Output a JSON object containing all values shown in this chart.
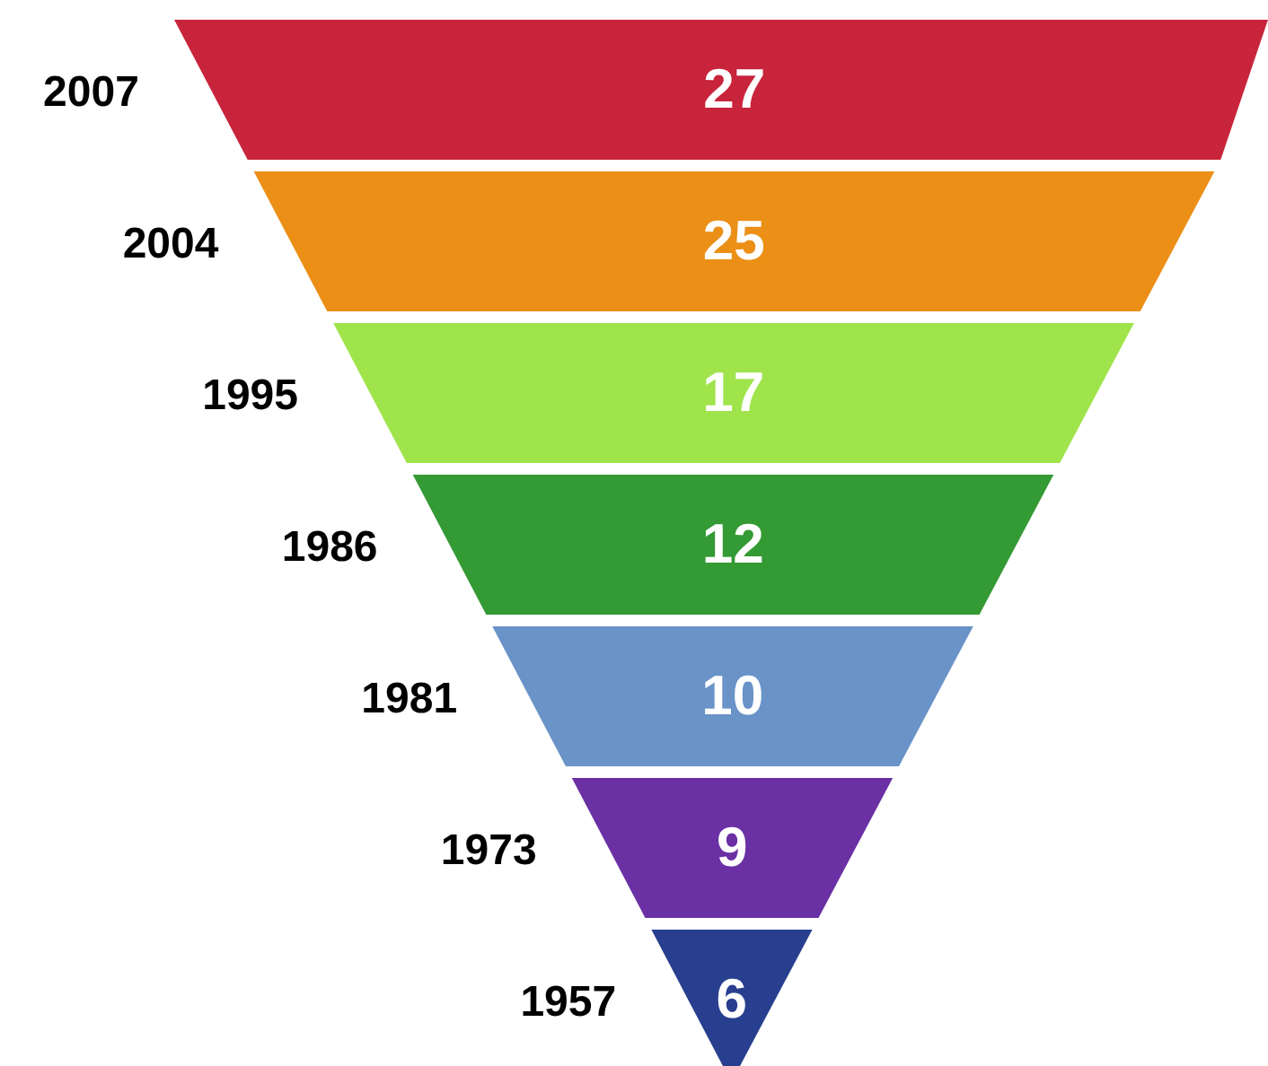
{
  "chart_data": {
    "type": "other",
    "categories": [
      "2007",
      "2004",
      "1995",
      "1986",
      "1981",
      "1973",
      "1957"
    ],
    "values": [
      27,
      25,
      17,
      12,
      10,
      9,
      6
    ],
    "colors": [
      "#c8243b",
      "#eb8f17",
      "#a0e44c",
      "#349a34",
      "#6a93c8",
      "#6a30a4",
      "#283f8f"
    ],
    "data_labels": true
  }
}
